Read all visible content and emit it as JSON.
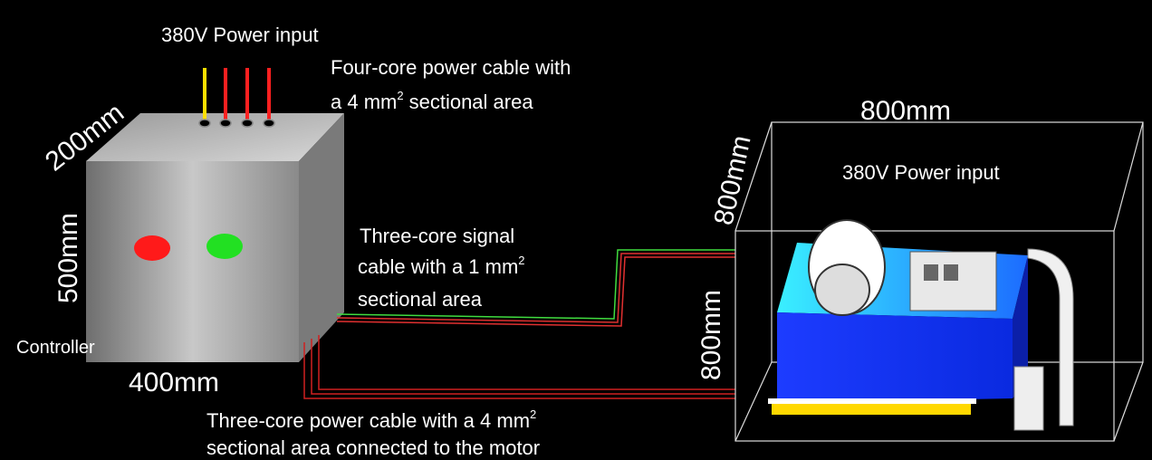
{
  "controller": {
    "power_input": "380V Power input",
    "four_core_cable": {
      "line1": "Four-core power cable with",
      "line2_start": "a 4 mm",
      "line2_sup": "2",
      "line2_end": "sectional area"
    },
    "depth": "200mm",
    "height": "500mm",
    "width": "400mm",
    "name": "Controller"
  },
  "signal_cable": {
    "line1": "Three-core signal",
    "line2_start": "cable with a 1 mm",
    "line2_sup": "2",
    "line3": "sectional area"
  },
  "motor_cable": {
    "line1_start": "Three-core power cable with a 4 mm",
    "line1_sup": "2",
    "line2": "sectional area connected to the motor"
  },
  "motor": {
    "width": "800mm",
    "depth": "800mm",
    "height": "800mm",
    "power_input": "380V Power input"
  }
}
